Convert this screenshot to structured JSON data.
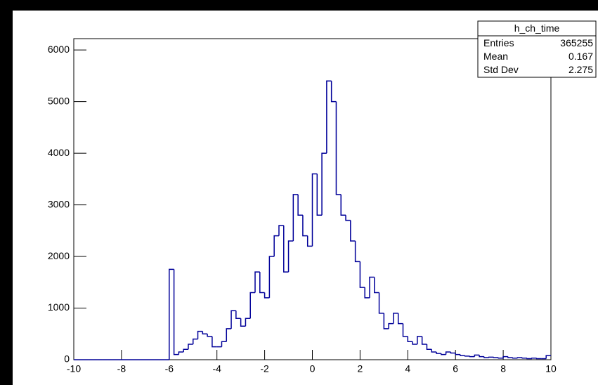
{
  "chart_data": {
    "type": "histogram",
    "bins": [
      -10,
      -9.8,
      -9.6,
      -9.4,
      -9.2,
      -9,
      -8.8,
      -8.6,
      -8.4,
      -8.2,
      -8,
      -7.8,
      -7.6,
      -7.4,
      -7.2,
      -7,
      -6.8,
      -6.6,
      -6.4,
      -6.2,
      -6,
      -5.8,
      -5.6,
      -5.4,
      -5.2,
      -5,
      -4.8,
      -4.6,
      -4.4,
      -4.2,
      -4,
      -3.8,
      -3.6,
      -3.4,
      -3.2,
      -3,
      -2.8,
      -2.6,
      -2.4,
      -2.2,
      -2,
      -1.8,
      -1.6,
      -1.4,
      -1.2,
      -1,
      -0.8,
      -0.6,
      -0.4,
      -0.2,
      0,
      0.2,
      0.4,
      0.6,
      0.8,
      1,
      1.2,
      1.4,
      1.6,
      1.8,
      2,
      2.2,
      2.4,
      2.6,
      2.8,
      3,
      3.2,
      3.4,
      3.6,
      3.8,
      4,
      4.2,
      4.4,
      4.6,
      4.8,
      5,
      5.2,
      5.4,
      5.6,
      5.8,
      6,
      6.2,
      6.4,
      6.6,
      6.8,
      7,
      7.2,
      7.4,
      7.6,
      7.8,
      8,
      8.2,
      8.4,
      8.6,
      8.8,
      9,
      9.2,
      9.4,
      9.6,
      9.8,
      10
    ],
    "values": [
      0,
      0,
      0,
      0,
      0,
      0,
      0,
      0,
      0,
      0,
      0,
      0,
      0,
      0,
      0,
      0,
      0,
      0,
      0,
      0,
      1750,
      100,
      150,
      200,
      300,
      400,
      550,
      500,
      450,
      250,
      250,
      350,
      600,
      950,
      800,
      650,
      800,
      1300,
      1700,
      1300,
      1200,
      2000,
      2400,
      2600,
      1700,
      2300,
      3200,
      2800,
      2400,
      2200,
      3600,
      2800,
      4000,
      5400,
      5000,
      3200,
      2800,
      2700,
      2300,
      1900,
      1400,
      1200,
      1600,
      1300,
      900,
      600,
      700,
      900,
      700,
      450,
      350,
      300,
      450,
      300,
      200,
      150,
      120,
      100,
      150,
      130,
      100,
      80,
      70,
      60,
      90,
      60,
      40,
      50,
      40,
      30,
      60,
      40,
      30,
      40,
      30,
      20,
      30,
      20,
      20,
      80
    ],
    "color": "#000099",
    "xlim": [
      -10,
      10
    ],
    "ylim": [
      0,
      6220
    ],
    "xticks": [
      -10,
      -8,
      -6,
      -4,
      -2,
      0,
      2,
      4,
      6,
      8,
      10
    ],
    "yticks": [
      0,
      1000,
      2000,
      3000,
      4000,
      5000,
      6000
    ],
    "stats_box": {
      "title": "h_ch_time",
      "rows": [
        {
          "label": "Entries",
          "value": 365255
        },
        {
          "label": "Mean",
          "value": 0.167
        },
        {
          "label": "Std Dev",
          "value": 2.275
        }
      ]
    }
  }
}
